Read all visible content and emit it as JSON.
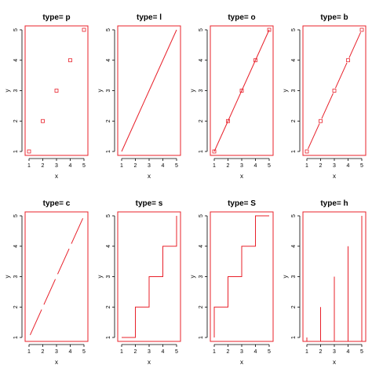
{
  "colors": {
    "series": "#e8202a",
    "axis": "#000000",
    "background": "#ffffff"
  },
  "chart_data": [
    {
      "type": "scatter",
      "title": "type= p",
      "xlabel": "x",
      "ylabel": "y",
      "plot_type": "p",
      "x": [
        1,
        2,
        3,
        4,
        5
      ],
      "y": [
        1,
        2,
        3,
        4,
        5
      ],
      "xlim": [
        1,
        5
      ],
      "ylim": [
        1,
        5
      ],
      "xticks": [
        "1",
        "2",
        "3",
        "4",
        "5"
      ],
      "yticks": [
        "1",
        "2",
        "3",
        "4",
        "5"
      ]
    },
    {
      "type": "line",
      "title": "type= l",
      "xlabel": "x",
      "ylabel": "y",
      "plot_type": "l",
      "x": [
        1,
        2,
        3,
        4,
        5
      ],
      "y": [
        1,
        2,
        3,
        4,
        5
      ],
      "xlim": [
        1,
        5
      ],
      "ylim": [
        1,
        5
      ],
      "xticks": [
        "1",
        "2",
        "3",
        "4",
        "5"
      ],
      "yticks": [
        "1",
        "2",
        "3",
        "4",
        "5"
      ]
    },
    {
      "type": "line",
      "title": "type= o",
      "xlabel": "x",
      "ylabel": "y",
      "plot_type": "o",
      "x": [
        1,
        2,
        3,
        4,
        5
      ],
      "y": [
        1,
        2,
        3,
        4,
        5
      ],
      "xlim": [
        1,
        5
      ],
      "ylim": [
        1,
        5
      ],
      "xticks": [
        "1",
        "2",
        "3",
        "4",
        "5"
      ],
      "yticks": [
        "1",
        "2",
        "3",
        "4",
        "5"
      ]
    },
    {
      "type": "line",
      "title": "type= b",
      "xlabel": "x",
      "ylabel": "y",
      "plot_type": "b",
      "x": [
        1,
        2,
        3,
        4,
        5
      ],
      "y": [
        1,
        2,
        3,
        4,
        5
      ],
      "xlim": [
        1,
        5
      ],
      "ylim": [
        1,
        5
      ],
      "xticks": [
        "1",
        "2",
        "3",
        "4",
        "5"
      ],
      "yticks": [
        "1",
        "2",
        "3",
        "4",
        "5"
      ]
    },
    {
      "type": "line",
      "title": "type= c",
      "xlabel": "x",
      "ylabel": "y",
      "plot_type": "c",
      "x": [
        1,
        2,
        3,
        4,
        5
      ],
      "y": [
        1,
        2,
        3,
        4,
        5
      ],
      "xlim": [
        1,
        5
      ],
      "ylim": [
        1,
        5
      ],
      "xticks": [
        "1",
        "2",
        "3",
        "4",
        "5"
      ],
      "yticks": [
        "1",
        "2",
        "3",
        "4",
        "5"
      ]
    },
    {
      "type": "line",
      "title": "type= s",
      "xlabel": "x",
      "ylabel": "y",
      "plot_type": "s",
      "x": [
        1,
        2,
        3,
        4,
        5
      ],
      "y": [
        1,
        2,
        3,
        4,
        5
      ],
      "xlim": [
        1,
        5
      ],
      "ylim": [
        1,
        5
      ],
      "xticks": [
        "1",
        "2",
        "3",
        "4",
        "5"
      ],
      "yticks": [
        "1",
        "2",
        "3",
        "4",
        "5"
      ]
    },
    {
      "type": "line",
      "title": "type= S",
      "xlabel": "x",
      "ylabel": "y",
      "plot_type": "S",
      "x": [
        1,
        2,
        3,
        4,
        5
      ],
      "y": [
        1,
        2,
        3,
        4,
        5
      ],
      "xlim": [
        1,
        5
      ],
      "ylim": [
        1,
        5
      ],
      "xticks": [
        "1",
        "2",
        "3",
        "4",
        "5"
      ],
      "yticks": [
        "1",
        "2",
        "3",
        "4",
        "5"
      ]
    },
    {
      "type": "bar",
      "title": "type= h",
      "xlabel": "x",
      "ylabel": "y",
      "plot_type": "h",
      "x": [
        1,
        2,
        3,
        4,
        5
      ],
      "y": [
        1,
        2,
        3,
        4,
        5
      ],
      "xlim": [
        1,
        5
      ],
      "ylim": [
        1,
        5
      ],
      "xticks": [
        "1",
        "2",
        "3",
        "4",
        "5"
      ],
      "yticks": [
        "1",
        "2",
        "3",
        "4",
        "5"
      ]
    }
  ]
}
